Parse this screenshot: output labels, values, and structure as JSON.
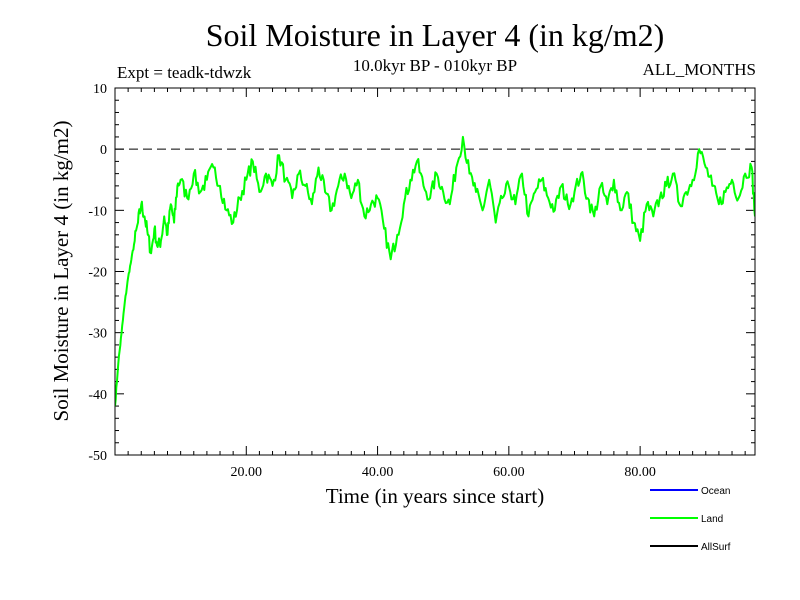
{
  "chart_data": {
    "type": "line",
    "title": "Soil Moisture in Layer 4 (in kg/m2)",
    "subtitle": "10.0kyr BP - 010kyr BP",
    "experiment": "Expt = teadk-tdwzk",
    "period": "ALL_MONTHS",
    "xlabel": "Time (in years since start)",
    "ylabel": "Soil Moisture in Layer 4 (in kg/m2)",
    "xlim": [
      0,
      97.5
    ],
    "ylim": [
      -50,
      10
    ],
    "x_ticks": [
      20,
      40,
      60,
      80
    ],
    "x_tick_labels": [
      "20.00",
      "40.00",
      "60.00",
      "80.00"
    ],
    "y_ticks": [
      10,
      0,
      -10,
      -20,
      -30,
      -40,
      -50
    ],
    "y_tick_labels": [
      "10",
      "0",
      "-10",
      "-20",
      "-30",
      "-40",
      "-50"
    ],
    "reference_line": 0,
    "legend": [
      {
        "name": "Ocean",
        "color": "#0000ff"
      },
      {
        "name": "Land",
        "color": "#00ff00"
      },
      {
        "name": "AllSurf",
        "color": "#000000"
      }
    ],
    "series": [
      {
        "name": "Land",
        "color": "#00ff00",
        "x": [
          0,
          0.5,
          1,
          1.5,
          2,
          2.5,
          3,
          3.5,
          4,
          4.5,
          5,
          5.5,
          6,
          6.5,
          7,
          7.5,
          8,
          8.5,
          9,
          9.5,
          10,
          11,
          12,
          13,
          14,
          15,
          16,
          17,
          18,
          19,
          20,
          21,
          22,
          23,
          24,
          25,
          26,
          27,
          28,
          29,
          30,
          31,
          32,
          33,
          34,
          35,
          36,
          37,
          38,
          39,
          40,
          41,
          42,
          43,
          44,
          45,
          46,
          47,
          48,
          49,
          50,
          51,
          52,
          53,
          54,
          55,
          56,
          57,
          58,
          59,
          60,
          61,
          62,
          63,
          64,
          65,
          66,
          67,
          68,
          69,
          70,
          71,
          72,
          73,
          74,
          75,
          76,
          77,
          78,
          79,
          80,
          81,
          82,
          83,
          84,
          85,
          86,
          87,
          88,
          89,
          90,
          91,
          92,
          93,
          94,
          95,
          96,
          97,
          97.5
        ],
        "values": [
          -42,
          -35,
          -30,
          -25,
          -21,
          -18,
          -15,
          -12,
          -9,
          -11,
          -14,
          -17,
          -13,
          -16,
          -15,
          -11,
          -14,
          -9,
          -12,
          -6,
          -5,
          -8,
          -4,
          -7,
          -5,
          -3,
          -6,
          -10,
          -12,
          -8,
          -5,
          -2,
          -7,
          -4,
          -6,
          -1,
          -5,
          -8,
          -4,
          -6,
          -9,
          -3,
          -7,
          -10,
          -6,
          -4,
          -8,
          -5,
          -11,
          -9,
          -8,
          -13,
          -18,
          -14,
          -9,
          -5,
          -2,
          -6,
          -8,
          -4,
          -7,
          -9,
          -3,
          2,
          -4,
          -7,
          -10,
          -5,
          -12,
          -8,
          -6,
          -9,
          -4,
          -11,
          -7,
          -5,
          -8,
          -10,
          -6,
          -9,
          -7,
          -4,
          -8,
          -11,
          -6,
          -9,
          -5,
          -10,
          -7,
          -12,
          -15,
          -9,
          -11,
          -8,
          -6,
          -4,
          -9,
          -7,
          -5,
          0,
          -3,
          -6,
          -9,
          -7,
          -5,
          -8,
          -4,
          -3,
          -11
        ]
      },
      {
        "name": "Ocean",
        "color": "#0000ff",
        "x": [],
        "values": []
      },
      {
        "name": "AllSurf",
        "color": "#000000",
        "x": [],
        "values": []
      }
    ]
  }
}
